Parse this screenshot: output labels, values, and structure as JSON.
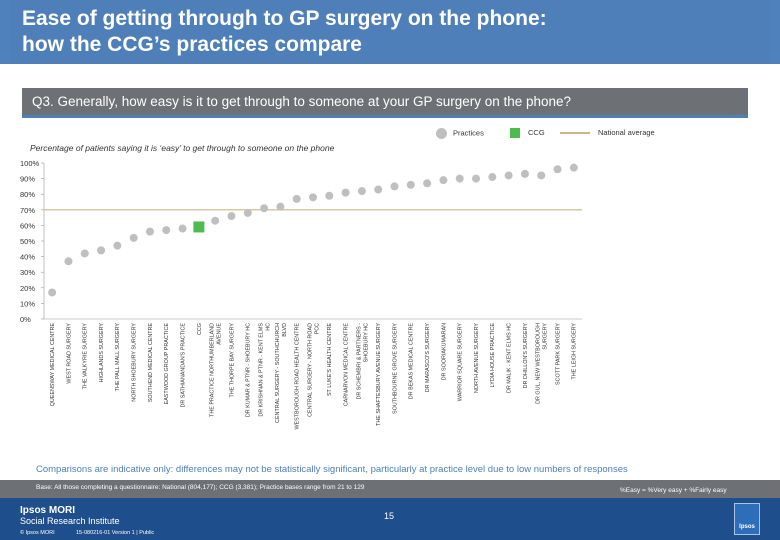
{
  "header": {
    "title_line1": "Ease of getting through to GP surgery on the phone:",
    "title_line2": "how the CCG’s practices compare",
    "question": "Q3. Generally, how easy is it to get through to someone at your GP surgery on the phone?"
  },
  "legend": {
    "practices": "Practices",
    "ccg": "CCG",
    "national": "National average"
  },
  "colors": {
    "practices": "#bfbfbf",
    "ccg": "#4dbb4d",
    "national": "#c8b58a",
    "title_bg": "#4e7fb9",
    "footer_bg": "#1f4e8c"
  },
  "chart_data": {
    "type": "scatter",
    "title": "Percentage of patients saying it is ‘easy’ to get through to someone on the phone",
    "ylabel": "",
    "ylim": [
      0,
      100
    ],
    "yticks": [
      "0%",
      "10%",
      "20%",
      "30%",
      "40%",
      "50%",
      "60%",
      "70%",
      "80%",
      "90%",
      "100%"
    ],
    "national_average": 70,
    "ccg_index": 9,
    "categories": [
      "QUEENSWAY MEDICAL CENTRE",
      "WEST ROAD SURGERY",
      "THE VALKYRIE SURGERY",
      "HIGHLANDS SURGERY",
      "THE PALL MALL SURGERY",
      "NORTH SHOEBURY SURGERY",
      "SOUTHEND MEDICAL CENTRE",
      "EASTWOOD GROUP PRACTICE",
      "DR SATHIANANDAN'S PRACTICE",
      "CCG",
      "THE PRACTICE NORTHUMBERLAND AVENUE",
      "THE THORPE BAY SURGERY",
      "DR KUMAR & PTNR - SHOEBURY HC",
      "DR KRISHNAN & PTNR - KENT ELMS HC",
      "CENTRAL SURGERY - SOUTHCHURCH BLVD",
      "WESTBOROUGH ROAD HEALTH CENTRE",
      "CENTRAL SURGERY - NORTH ROAD PCC",
      "ST LUKE'S HEALTH CENTRE",
      "CARNARVON MEDICAL CENTRE",
      "DR SCHEMBRI & PARTNERS - SHOEBURY HC",
      "THE SHAFTESBURY AVENUE SURGERY",
      "SOUTHBOURNE GROVE SURGERY",
      "DR BEKAS MEDICAL CENTRE",
      "DR MARASCO'S SURGERY",
      "DR SOORIAKUMARAN",
      "WARRIOR SQUARE SURGERY",
      "NORTH AVENUE SURGERY",
      "LYDIA HOUSE PRACTICE",
      "DR MALIK - KENT ELMS HC",
      "DR DHILLON'S SURGERY",
      "DR GUL, NEW WESTBOROUGH SURGERY",
      "SCOTT PARK SURGERY",
      "THE LEIGH SURGERY"
    ],
    "values": [
      17,
      37,
      42,
      44,
      47,
      52,
      56,
      57,
      58,
      59,
      63,
      66,
      68,
      71,
      72,
      77,
      78,
      79,
      81,
      82,
      83,
      85,
      86,
      87,
      89,
      90,
      90,
      91,
      92,
      93,
      92,
      96,
      97
    ]
  },
  "notes": {
    "caveat": "Comparisons are indicative only: differences may not be statistically significant, particularly at practice level due to low numbers of responses",
    "base": "Base: All those completing a questionnaire: National (804,177); CCG (3,381); Practice bases range from 21 to 129",
    "easy_def": "%Easy = %Very easy + %Fairly easy"
  },
  "footer": {
    "logo_line1": "Ipsos MORI",
    "logo_line2": "Social Research Institute",
    "page": "15",
    "copyright": "© Ipsos MORI",
    "version": "15-080216-01 Version 1 | Public",
    "badge": "Ipsos"
  }
}
